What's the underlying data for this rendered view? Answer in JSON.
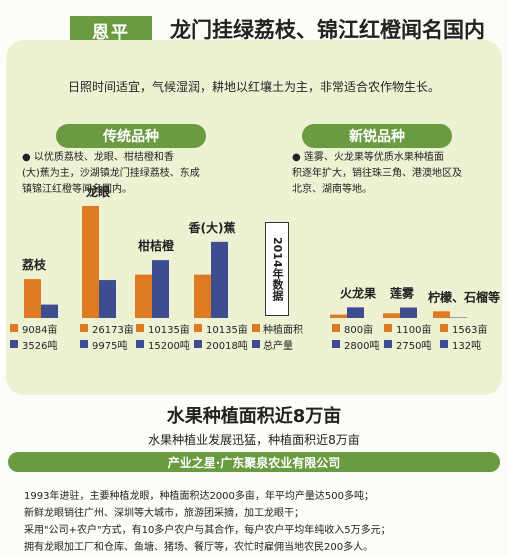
{
  "header": {
    "city_tag": "恩平",
    "headline": "龙门挂绿荔枝、锦江红橙闻名国内"
  },
  "climate_text": "日照时间适宜，气候湿润，耕地以红壤土为主，非常适合农作物生长。",
  "traditional": {
    "title": "传统品种",
    "desc": [
      "● 以优质荔枝、龙眼、柑桔橙和香",
      "(大)蕉为主，沙湖镇龙门挂绿荔枝、东成",
      "镇锦江红橙等闻名国内。"
    ]
  },
  "new_varieties": {
    "title": "新锐品种",
    "desc": [
      "● 莲雾、火龙果等优质水果种植面",
      "积逐年扩大，销往珠三角、港澳地区及",
      "北京、湖南等地。"
    ]
  },
  "year_label": "2014年数据",
  "legend": {
    "area": "种植面积",
    "output": "总产量"
  },
  "colors": {
    "area": "#dd7a22",
    "output": "#3d4d8f"
  },
  "chart_data": {
    "type": "bar",
    "year": "2014年",
    "categories": [
      "荔枝",
      "龙眼",
      "柑桔橙",
      "香(大)蕉",
      "火龙果",
      "莲雾",
      "柠檬、石榴等"
    ],
    "series": [
      {
        "name": "种植面积",
        "values": [
          9084,
          26173,
          10135,
          10135,
          800,
          1100,
          1563
        ],
        "unit": "亩",
        "labels": [
          "9084亩",
          "26173亩",
          "10135亩",
          "10135亩",
          "800亩",
          "1100亩",
          "1563亩"
        ]
      },
      {
        "name": "总产量",
        "values": [
          3526,
          9975,
          15200,
          20018,
          2800,
          2750,
          132
        ],
        "unit": "吨",
        "labels": [
          "3526吨",
          "9975吨",
          "15200吨",
          "20018吨",
          "2800吨",
          "2750吨",
          "132吨"
        ]
      }
    ]
  },
  "bottom": {
    "title": "水果种植面积近8万亩",
    "subtitle": "水果种植业发展迅猛，种植面积近8万亩",
    "band": "产业之星·广东聚泉农业有限公司",
    "lines": [
      "1993年进驻，主要种植龙眼，种植面积达2000多亩，年平均产量达500多吨；",
      "新鲜龙眼销往广州、深圳等大城市，旅游团采摘，加工龙眼干；",
      "采用\"公司+农户\"方式，有10多户农户与其合作，每户农户平均年纯收入5万多元；",
      "拥有龙眼加工厂和仓库、鱼塘、猪场、餐厅等，农忙时雇佣当地农民200多人。"
    ]
  }
}
